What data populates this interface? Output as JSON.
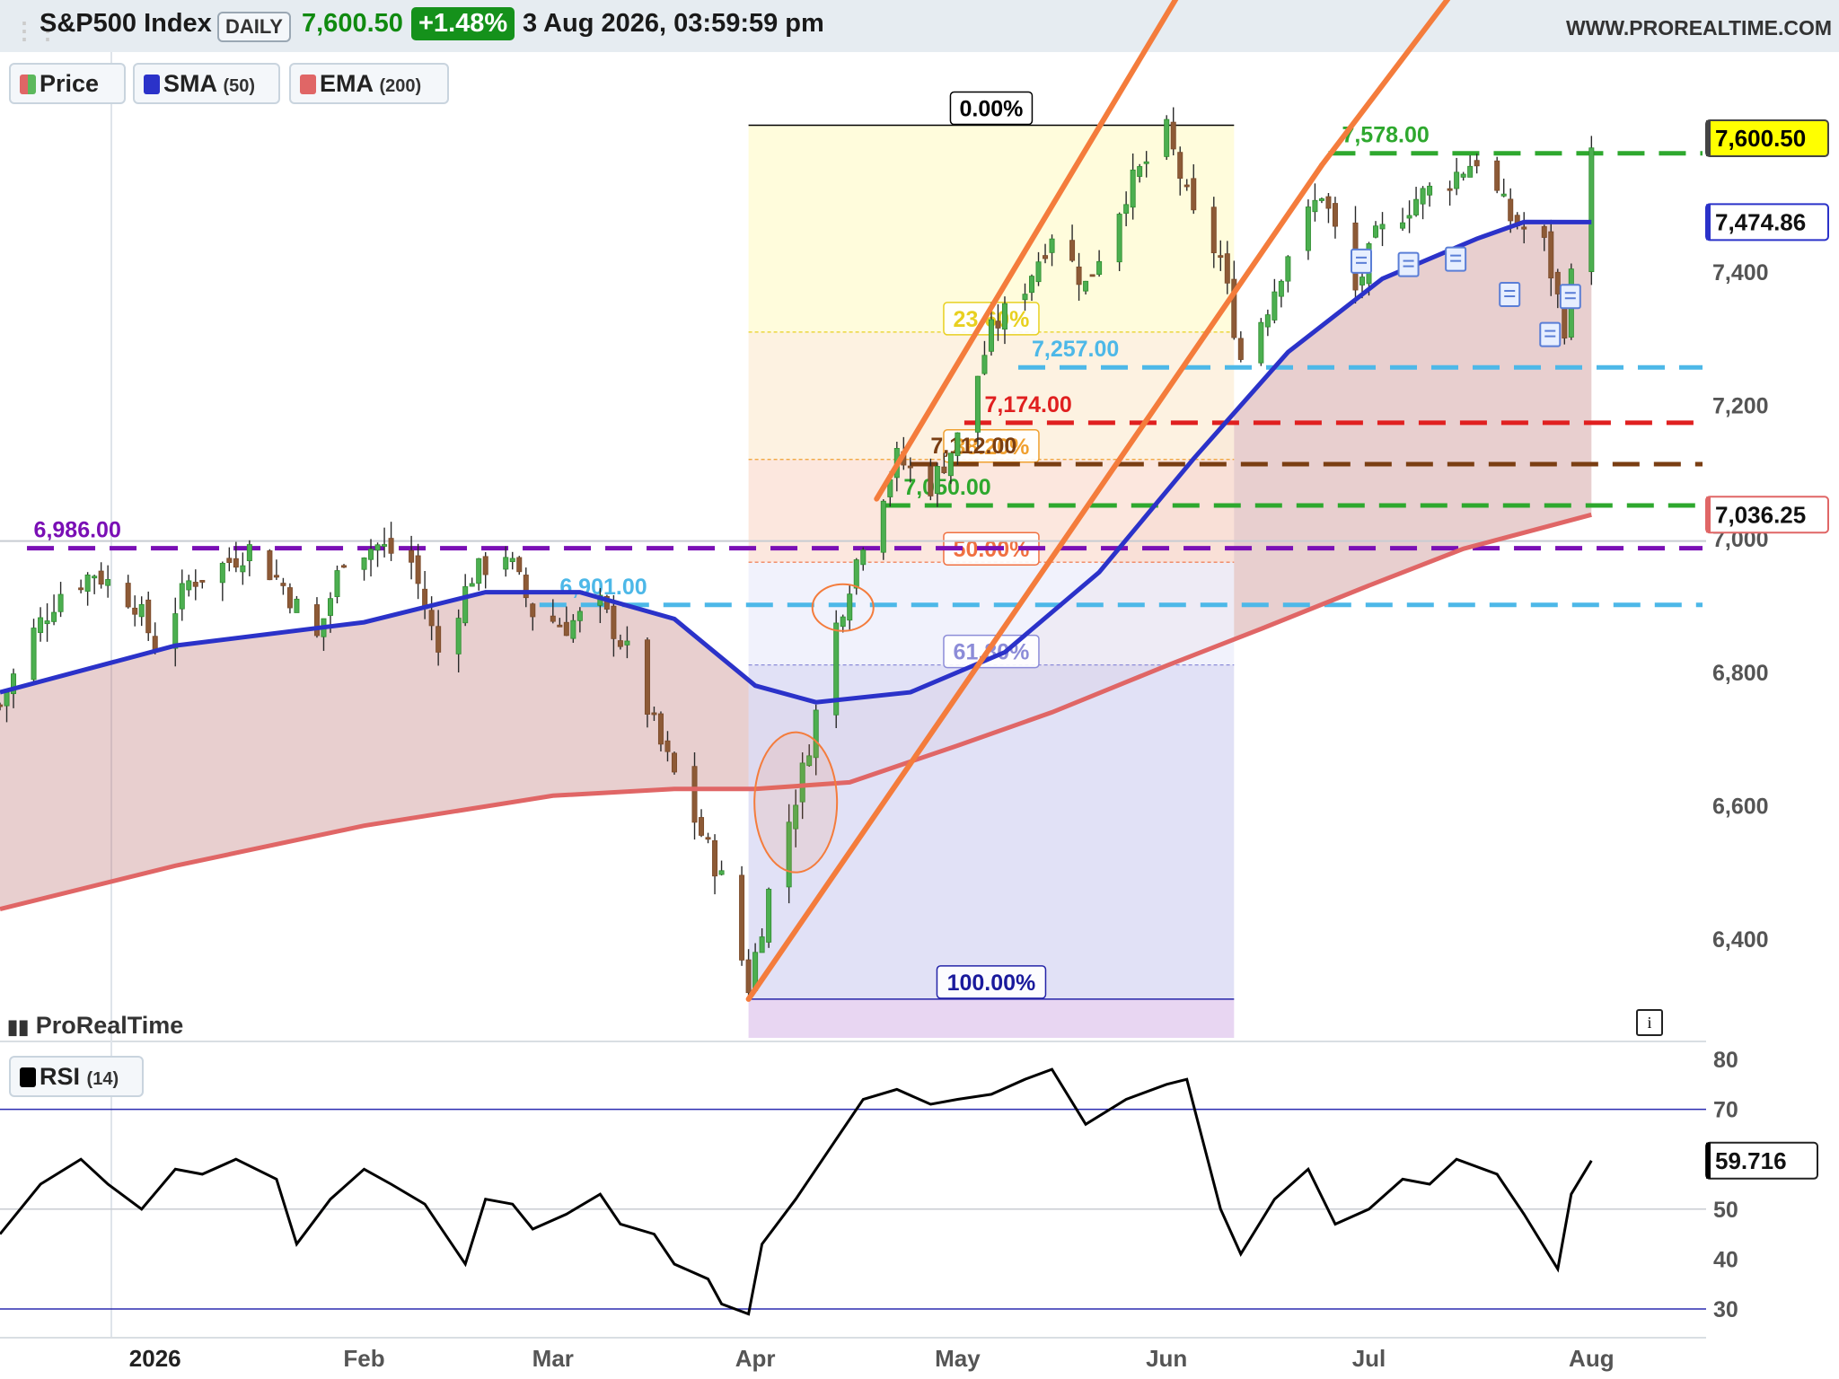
{
  "header": {
    "instrument": "S&P500 Index",
    "timeframe": "DAILY",
    "last_price": "7,600.50",
    "change_pct": "+1.48%",
    "datetime": "3 Aug 2026, 03:59:59 pm",
    "website": "WWW.PROREALTIME.COM",
    "menu_icon": "grid-icon"
  },
  "legend": {
    "price": {
      "label": "Price",
      "color": "#5cb85c"
    },
    "sma": {
      "label": "SMA",
      "param": "(50)",
      "color": "#2b32c9"
    },
    "ema": {
      "label": "EMA",
      "param": "(200)",
      "color": "#e06666"
    },
    "rsi": {
      "label": "RSI",
      "param": "(14)",
      "color": "#000000"
    }
  },
  "brand": {
    "logo_text": "ProRealTime",
    "logo_icon": "candles-logo-icon",
    "info_icon": "info-icon",
    "info_glyph": "i"
  },
  "colors": {
    "up": "#2f8c2f",
    "down": "#7a4a2a",
    "sma": "#2b32c9",
    "ema": "#e06666",
    "trendline": "#f47c3c",
    "fib_fill_top": "#fffbd6",
    "fib_fill_bottom": "#dcdcf4",
    "level_purple": "#7a0fb5",
    "level_blue": "#4db8e8",
    "level_red": "#e01f1f",
    "level_brown": "#7a3e12",
    "level_green": "#2ea82e",
    "price_tag": "#ffff00"
  },
  "chart_data": [
    {
      "type": "candlestick",
      "title": "S&P500 Index",
      "timeframe": "Daily",
      "y_ticks": [
        6400,
        6600,
        6800,
        7000,
        7200,
        7400
      ],
      "y_tick_labels": [
        "6,400",
        "6,600",
        "6,800",
        "7,000",
        "7,200",
        "7,400"
      ],
      "ylim": [
        6300,
        7660
      ],
      "x_ticks": [
        {
          "label": "2026",
          "date": "2026-01-02"
        },
        {
          "label": "Feb",
          "date": "2026-02-02"
        },
        {
          "label": "Mar",
          "date": "2026-03-02"
        },
        {
          "label": "Apr",
          "date": "2026-04-01"
        },
        {
          "label": "May",
          "date": "2026-05-01"
        },
        {
          "label": "Jun",
          "date": "2026-06-01"
        },
        {
          "label": "Jul",
          "date": "2026-07-01"
        },
        {
          "label": "Aug",
          "date": "2026-08-03"
        }
      ],
      "xlim": [
        "2025-12-10",
        "2026-08-20"
      ],
      "grid": false,
      "legend_position": "top-left",
      "close_series": {
        "name": "Price",
        "points": [
          [
            "2025-12-10",
            6750
          ],
          [
            "2025-12-15",
            6860
          ],
          [
            "2025-12-19",
            6920
          ],
          [
            "2025-12-24",
            6950
          ],
          [
            "2025-12-30",
            6905
          ],
          [
            "2026-01-02",
            6840
          ],
          [
            "2026-01-07",
            6935
          ],
          [
            "2026-01-12",
            6960
          ],
          [
            "2026-01-16",
            6985
          ],
          [
            "2026-01-21",
            6930
          ],
          [
            "2026-01-26",
            6850
          ],
          [
            "2026-01-30",
            6975
          ],
          [
            "2026-02-04",
            6990
          ],
          [
            "2026-02-09",
            6965
          ],
          [
            "2026-02-13",
            6830
          ],
          [
            "2026-02-18",
            6945
          ],
          [
            "2026-02-23",
            6980
          ],
          [
            "2026-02-27",
            6890
          ],
          [
            "2026-03-04",
            6870
          ],
          [
            "2026-03-09",
            6900
          ],
          [
            "2026-03-13",
            6830
          ],
          [
            "2026-03-18",
            6690
          ],
          [
            "2026-03-23",
            6580
          ],
          [
            "2026-03-27",
            6490
          ],
          [
            "2026-03-31",
            6330
          ],
          [
            "2026-04-03",
            6470
          ],
          [
            "2026-04-08",
            6650
          ],
          [
            "2026-04-13",
            6870
          ],
          [
            "2026-04-17",
            7000
          ],
          [
            "2026-04-22",
            7120
          ],
          [
            "2026-04-27",
            7080
          ],
          [
            "2026-05-01",
            7150
          ],
          [
            "2026-05-06",
            7310
          ],
          [
            "2026-05-11",
            7380
          ],
          [
            "2026-05-15",
            7460
          ],
          [
            "2026-05-20",
            7380
          ],
          [
            "2026-05-26",
            7520
          ],
          [
            "2026-06-01",
            7610
          ],
          [
            "2026-06-05",
            7480
          ],
          [
            "2026-06-09",
            7420
          ],
          [
            "2026-06-12",
            7270
          ],
          [
            "2026-06-16",
            7350
          ],
          [
            "2026-06-19",
            7430
          ],
          [
            "2026-06-24",
            7520
          ],
          [
            "2026-06-29",
            7370
          ],
          [
            "2026-07-02",
            7450
          ],
          [
            "2026-07-08",
            7510
          ],
          [
            "2026-07-13",
            7540
          ],
          [
            "2026-07-17",
            7570
          ],
          [
            "2026-07-22",
            7480
          ],
          [
            "2026-07-27",
            7440
          ],
          [
            "2026-07-30",
            7320
          ],
          [
            "2026-08-03",
            7600.5
          ]
        ]
      },
      "last_price": 7600.5
    },
    {
      "type": "line",
      "series": [
        {
          "name": "SMA (50)",
          "last_value": 7474.86,
          "points": [
            [
              "2025-12-10",
              6770
            ],
            [
              "2026-01-05",
              6840
            ],
            [
              "2026-02-02",
              6875
            ],
            [
              "2026-02-20",
              6920
            ],
            [
              "2026-03-06",
              6920
            ],
            [
              "2026-03-20",
              6880
            ],
            [
              "2026-04-01",
              6780
            ],
            [
              "2026-04-10",
              6755
            ],
            [
              "2026-04-24",
              6770
            ],
            [
              "2026-05-08",
              6830
            ],
            [
              "2026-05-22",
              6950
            ],
            [
              "2026-06-05",
              7120
            ],
            [
              "2026-06-19",
              7280
            ],
            [
              "2026-07-03",
              7390
            ],
            [
              "2026-07-17",
              7450
            ],
            [
              "2026-07-24",
              7475
            ],
            [
              "2026-08-03",
              7474.86
            ]
          ]
        },
        {
          "name": "EMA (200)",
          "last_value": 7036.25,
          "points": [
            [
              "2025-12-10",
              6445
            ],
            [
              "2026-01-05",
              6510
            ],
            [
              "2026-02-02",
              6570
            ],
            [
              "2026-03-02",
              6615
            ],
            [
              "2026-03-20",
              6625
            ],
            [
              "2026-04-01",
              6625
            ],
            [
              "2026-04-15",
              6635
            ],
            [
              "2026-05-01",
              6690
            ],
            [
              "2026-05-15",
              6740
            ],
            [
              "2026-06-01",
              6810
            ],
            [
              "2026-06-15",
              6865
            ],
            [
              "2026-07-01",
              6930
            ],
            [
              "2026-07-15",
              6985
            ],
            [
              "2026-08-03",
              7036.25
            ]
          ]
        }
      ]
    },
    {
      "type": "annotations",
      "horizontal_levels": [
        {
          "label": "6,986.00",
          "value": 6986,
          "color": "#7a0fb5"
        },
        {
          "label": "6,901.00",
          "value": 6901,
          "color": "#4db8e8"
        },
        {
          "label": "7,257.00",
          "value": 7257,
          "color": "#4db8e8"
        },
        {
          "label": "7,174.00",
          "value": 7174,
          "color": "#e01f1f"
        },
        {
          "label": "7,112.00",
          "value": 7112,
          "color": "#7a3e12"
        },
        {
          "label": "7,050.00",
          "value": 7050,
          "color": "#2ea82e"
        },
        {
          "label": "7,578.00",
          "value": 7578,
          "color": "#2ea82e"
        }
      ],
      "fibonacci": {
        "start": "2026-03-31",
        "end": "2026-06-11",
        "levels": [
          {
            "label": "0.00%",
            "value": 7620
          },
          {
            "label": "23.60%",
            "value": 7310
          },
          {
            "label": "38.20%",
            "value": 7119
          },
          {
            "label": "50.00%",
            "value": 6965
          },
          {
            "label": "61.80%",
            "value": 6811
          },
          {
            "label": "100.00%",
            "value": 6310
          }
        ]
      },
      "price_tags": [
        {
          "label": "7,600.50",
          "value": 7600.5
        },
        {
          "label": "7,474.86",
          "value": 7474.86
        },
        {
          "label": "7,036.25",
          "value": 7036.25
        }
      ]
    },
    {
      "type": "line",
      "name": "RSI (14)",
      "last_value": 59.716,
      "last_label": "59.716",
      "y_ticks": [
        30,
        40,
        50,
        60,
        70,
        80
      ],
      "y_tick_labels": [
        "30",
        "40",
        "50",
        "",
        "70",
        "80"
      ],
      "ylim": [
        25,
        82
      ],
      "reference_lines": [
        70,
        30
      ],
      "points": [
        [
          "2025-12-10",
          45
        ],
        [
          "2025-12-16",
          55
        ],
        [
          "2025-12-22",
          60
        ],
        [
          "2025-12-26",
          55
        ],
        [
          "2025-12-31",
          50
        ],
        [
          "2026-01-05",
          58
        ],
        [
          "2026-01-09",
          57
        ],
        [
          "2026-01-14",
          60
        ],
        [
          "2026-01-20",
          56
        ],
        [
          "2026-01-23",
          43
        ],
        [
          "2026-01-28",
          52
        ],
        [
          "2026-02-02",
          58
        ],
        [
          "2026-02-06",
          55
        ],
        [
          "2026-02-11",
          51
        ],
        [
          "2026-02-17",
          39
        ],
        [
          "2026-02-20",
          52
        ],
        [
          "2026-02-24",
          51
        ],
        [
          "2026-02-27",
          46
        ],
        [
          "2026-03-04",
          49
        ],
        [
          "2026-03-09",
          53
        ],
        [
          "2026-03-12",
          47
        ],
        [
          "2026-03-17",
          45
        ],
        [
          "2026-03-20",
          39
        ],
        [
          "2026-03-25",
          36
        ],
        [
          "2026-03-27",
          31
        ],
        [
          "2026-03-31",
          29
        ],
        [
          "2026-04-02",
          43
        ],
        [
          "2026-04-07",
          52
        ],
        [
          "2026-04-13",
          64
        ],
        [
          "2026-04-17",
          72
        ],
        [
          "2026-04-22",
          74
        ],
        [
          "2026-04-27",
          71
        ],
        [
          "2026-05-01",
          72
        ],
        [
          "2026-05-06",
          73
        ],
        [
          "2026-05-11",
          76
        ],
        [
          "2026-05-15",
          78
        ],
        [
          "2026-05-20",
          67
        ],
        [
          "2026-05-26",
          72
        ],
        [
          "2026-06-01",
          75
        ],
        [
          "2026-06-04",
          76
        ],
        [
          "2026-06-09",
          50
        ],
        [
          "2026-06-12",
          41
        ],
        [
          "2026-06-17",
          52
        ],
        [
          "2026-06-22",
          58
        ],
        [
          "2026-06-26",
          47
        ],
        [
          "2026-07-01",
          50
        ],
        [
          "2026-07-06",
          56
        ],
        [
          "2026-07-10",
          55
        ],
        [
          "2026-07-14",
          60
        ],
        [
          "2026-07-20",
          57
        ],
        [
          "2026-07-24",
          49
        ],
        [
          "2026-07-29",
          38
        ],
        [
          "2026-07-31",
          53
        ],
        [
          "2026-08-03",
          59.716
        ]
      ]
    }
  ]
}
